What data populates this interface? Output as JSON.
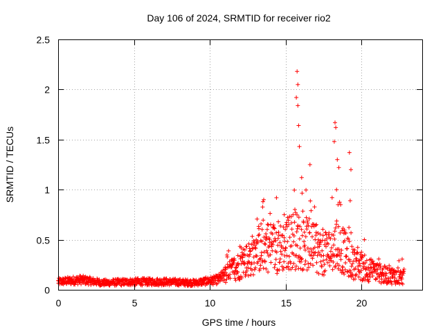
{
  "chart_data": {
    "type": "scatter",
    "title": "Day 106 of 2024, SRMTID for receiver rio2",
    "xlabel": "GPS time / hours",
    "ylabel": "SRMTID / TECUs",
    "xlim": [
      0,
      24
    ],
    "ylim": [
      0,
      2.5
    ],
    "xticks": [
      0,
      5,
      10,
      15,
      20
    ],
    "xtick_labels": [
      "0",
      "5",
      "10",
      "15",
      "20"
    ],
    "yticks": [
      0,
      0.5,
      1,
      1.5,
      2,
      2.5
    ],
    "ytick_labels": [
      "0",
      "0.5",
      "1",
      "1.5",
      "2",
      "2.5"
    ],
    "grid": true,
    "marker": "+",
    "series": [
      {
        "name": "SRMTID",
        "color": "#ff0000",
        "profile": [
          {
            "x": 0.0,
            "y": 0.08
          },
          {
            "x": 1.5,
            "y": 0.1
          },
          {
            "x": 3.0,
            "y": 0.07
          },
          {
            "x": 5.0,
            "y": 0.08
          },
          {
            "x": 7.0,
            "y": 0.08
          },
          {
            "x": 9.0,
            "y": 0.07
          },
          {
            "x": 10.5,
            "y": 0.1
          },
          {
            "x": 11.5,
            "y": 0.2
          },
          {
            "x": 12.5,
            "y": 0.3
          },
          {
            "x": 13.5,
            "y": 0.45
          },
          {
            "x": 14.5,
            "y": 0.4
          },
          {
            "x": 15.5,
            "y": 0.5
          },
          {
            "x": 16.5,
            "y": 0.45
          },
          {
            "x": 17.5,
            "y": 0.35
          },
          {
            "x": 18.5,
            "y": 0.45
          },
          {
            "x": 19.5,
            "y": 0.25
          },
          {
            "x": 20.5,
            "y": 0.2
          },
          {
            "x": 21.5,
            "y": 0.15
          },
          {
            "x": 22.8,
            "y": 0.13
          }
        ],
        "peaks": [
          {
            "x": 13.5,
            "y": 0.88
          },
          {
            "x": 15.75,
            "y": 2.18
          },
          {
            "x": 15.8,
            "y": 2.05
          },
          {
            "x": 15.7,
            "y": 1.92
          },
          {
            "x": 15.8,
            "y": 1.84
          },
          {
            "x": 15.85,
            "y": 1.64
          },
          {
            "x": 15.9,
            "y": 1.43
          },
          {
            "x": 16.05,
            "y": 1.12
          },
          {
            "x": 16.6,
            "y": 1.25
          },
          {
            "x": 18.25,
            "y": 1.67
          },
          {
            "x": 18.3,
            "y": 1.62
          },
          {
            "x": 18.2,
            "y": 1.48
          },
          {
            "x": 18.4,
            "y": 1.3
          },
          {
            "x": 18.5,
            "y": 1.22
          },
          {
            "x": 18.35,
            "y": 1.0
          },
          {
            "x": 18.45,
            "y": 0.85
          },
          {
            "x": 19.2,
            "y": 1.37
          },
          {
            "x": 19.3,
            "y": 1.2
          },
          {
            "x": 19.25,
            "y": 0.89
          },
          {
            "x": 14.9,
            "y": 0.75
          }
        ]
      }
    ]
  }
}
